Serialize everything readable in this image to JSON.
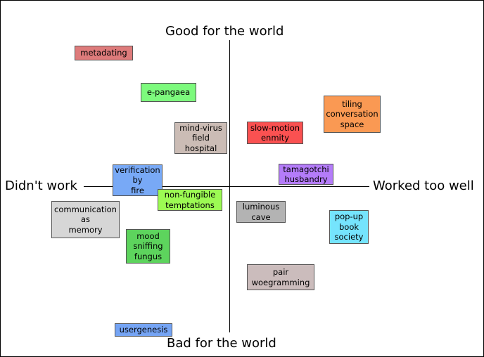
{
  "axes": {
    "top": "Good for the world",
    "bottom": "Bad for the world",
    "left": "Didn't work",
    "right": "Worked too well"
  },
  "tags": [
    {
      "id": "metadating",
      "text": "metadating",
      "color": "#de7b7b"
    },
    {
      "id": "e-pangaea",
      "text": "e-pangaea",
      "color": "#7dfa7d"
    },
    {
      "id": "mind-virus",
      "text": "mind-virus\nfield\nhospital",
      "color": "#cbbcb5"
    },
    {
      "id": "slow-motion",
      "text": "slow-motion\nenmity",
      "color": "#fa5151"
    },
    {
      "id": "tiling",
      "text": "tiling\nconversation\nspace",
      "color": "#fa9953"
    },
    {
      "id": "tamagotchi",
      "text": "tamagotchi\nhusbandry",
      "color": "#b47cf9"
    },
    {
      "id": "verification",
      "text": "verification\nby\nfire",
      "color": "#78a9f6"
    },
    {
      "id": "non-fungible",
      "text": "non-fungible\ntemptations",
      "color": "#9cfb53"
    },
    {
      "id": "communication",
      "text": "communication\nas\nmemory",
      "color": "#d6d6d6"
    },
    {
      "id": "luminous",
      "text": "luminous\ncave",
      "color": "#b3b3b3"
    },
    {
      "id": "pop-up",
      "text": "pop-up\nbook\nsociety",
      "color": "#75e4fd"
    },
    {
      "id": "mood",
      "text": "mood\nsniffing\nfungus",
      "color": "#5dd45d"
    },
    {
      "id": "pair",
      "text": "pair\nwoegramming",
      "color": "#cbbcbc"
    },
    {
      "id": "usergenesis",
      "text": "usergenesis",
      "color": "#75a4f4"
    }
  ]
}
